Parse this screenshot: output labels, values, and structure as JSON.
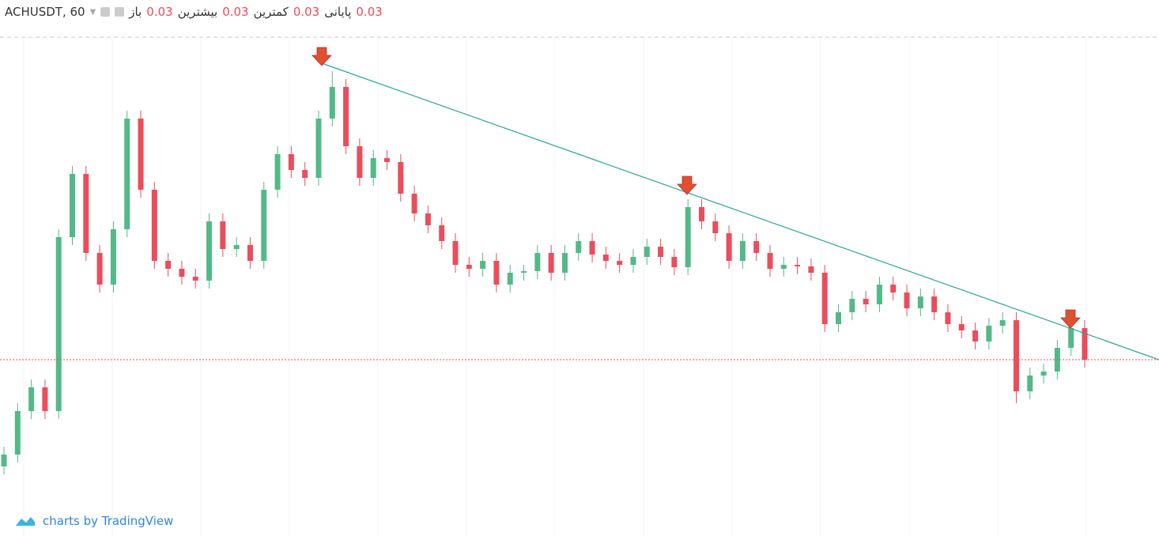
{
  "header": {
    "symbol": "ACHUSDT, 60",
    "open_label": "باز",
    "open": 0.03,
    "high_label": "بیشترین",
    "high": 0.03,
    "low_label": "کمترین",
    "low": 0.03,
    "close_label": "پایانی",
    "close": 0.03
  },
  "footer": "charts by TradingView",
  "chart_data": {
    "type": "candlestick",
    "up_color": "#53b987",
    "down_color": "#eb4d5c",
    "ylim": [
      0.02777,
      0.03407
    ],
    "ohlc": [
      [
        0.02865,
        0.0289,
        0.02855,
        0.0288
      ],
      [
        0.0288,
        0.02945,
        0.0287,
        0.02935
      ],
      [
        0.02935,
        0.02975,
        0.02925,
        0.02965
      ],
      [
        0.02965,
        0.02975,
        0.02925,
        0.02935
      ],
      [
        0.02935,
        0.03165,
        0.02925,
        0.03155
      ],
      [
        0.03155,
        0.03245,
        0.03145,
        0.03235
      ],
      [
        0.03235,
        0.03245,
        0.03125,
        0.03135
      ],
      [
        0.03135,
        0.03145,
        0.03085,
        0.03095
      ],
      [
        0.03095,
        0.03175,
        0.03085,
        0.03165
      ],
      [
        0.03165,
        0.03315,
        0.03155,
        0.03305
      ],
      [
        0.03305,
        0.03315,
        0.03205,
        0.03215
      ],
      [
        0.03215,
        0.03225,
        0.03115,
        0.03125
      ],
      [
        0.03125,
        0.03135,
        0.03105,
        0.03115
      ],
      [
        0.03115,
        0.03125,
        0.03095,
        0.03105
      ],
      [
        0.03105,
        0.03115,
        0.0309,
        0.031
      ],
      [
        0.031,
        0.03185,
        0.0309,
        0.03175
      ],
      [
        0.03175,
        0.03185,
        0.0313,
        0.0314
      ],
      [
        0.0314,
        0.03155,
        0.0313,
        0.03145
      ],
      [
        0.03145,
        0.03155,
        0.03115,
        0.03125
      ],
      [
        0.03125,
        0.03225,
        0.03115,
        0.03215
      ],
      [
        0.03215,
        0.0327,
        0.03205,
        0.0326
      ],
      [
        0.0326,
        0.0327,
        0.0323,
        0.0324
      ],
      [
        0.0324,
        0.0325,
        0.0322,
        0.0323
      ],
      [
        0.0323,
        0.03315,
        0.0322,
        0.03305
      ],
      [
        0.03305,
        0.03365,
        0.03295,
        0.03345
      ],
      [
        0.03345,
        0.03355,
        0.0326,
        0.0327
      ],
      [
        0.0327,
        0.0328,
        0.0322,
        0.0323
      ],
      [
        0.0323,
        0.03265,
        0.0322,
        0.03255
      ],
      [
        0.03255,
        0.03265,
        0.0324,
        0.0325
      ],
      [
        0.0325,
        0.0326,
        0.032,
        0.0321
      ],
      [
        0.0321,
        0.0322,
        0.03175,
        0.03185
      ],
      [
        0.03185,
        0.03195,
        0.0316,
        0.0317
      ],
      [
        0.0317,
        0.0318,
        0.0314,
        0.0315
      ],
      [
        0.0315,
        0.0316,
        0.0311,
        0.0312
      ],
      [
        0.0312,
        0.0313,
        0.03105,
        0.03115
      ],
      [
        0.03115,
        0.03135,
        0.03105,
        0.03125
      ],
      [
        0.03125,
        0.03135,
        0.03085,
        0.03095
      ],
      [
        0.03095,
        0.0312,
        0.03085,
        0.0311
      ],
      [
        0.0311,
        0.0312,
        0.031,
        0.03112
      ],
      [
        0.03112,
        0.03145,
        0.03102,
        0.03135
      ],
      [
        0.03135,
        0.03145,
        0.031,
        0.0311
      ],
      [
        0.0311,
        0.03145,
        0.031,
        0.03135
      ],
      [
        0.03135,
        0.0316,
        0.03125,
        0.0315
      ],
      [
        0.0315,
        0.0316,
        0.03123,
        0.03133
      ],
      [
        0.03133,
        0.03143,
        0.03115,
        0.03125
      ],
      [
        0.03125,
        0.03135,
        0.0311,
        0.0312
      ],
      [
        0.0312,
        0.0314,
        0.0311,
        0.0313
      ],
      [
        0.0313,
        0.03153,
        0.0312,
        0.03143
      ],
      [
        0.03143,
        0.03153,
        0.0312,
        0.0313
      ],
      [
        0.0313,
        0.0314,
        0.03107,
        0.03117
      ],
      [
        0.03117,
        0.03203,
        0.03107,
        0.03193
      ],
      [
        0.03193,
        0.03203,
        0.03165,
        0.03175
      ],
      [
        0.03175,
        0.03185,
        0.0315,
        0.0316
      ],
      [
        0.0316,
        0.0317,
        0.03115,
        0.03125
      ],
      [
        0.03125,
        0.0316,
        0.03115,
        0.0315
      ],
      [
        0.0315,
        0.0316,
        0.03125,
        0.03135
      ],
      [
        0.03135,
        0.03145,
        0.03105,
        0.03115
      ],
      [
        0.03115,
        0.0313,
        0.03105,
        0.0312
      ],
      [
        0.0312,
        0.0313,
        0.03108,
        0.03118
      ],
      [
        0.03118,
        0.03128,
        0.031,
        0.0311
      ],
      [
        0.0311,
        0.0312,
        0.03035,
        0.03045
      ],
      [
        0.03045,
        0.0307,
        0.03035,
        0.0306
      ],
      [
        0.0306,
        0.03087,
        0.0305,
        0.03077
      ],
      [
        0.03077,
        0.03087,
        0.0306,
        0.0307
      ],
      [
        0.0307,
        0.03105,
        0.0306,
        0.03095
      ],
      [
        0.03095,
        0.03105,
        0.03075,
        0.03085
      ],
      [
        0.03085,
        0.03095,
        0.03055,
        0.03065
      ],
      [
        0.03065,
        0.0309,
        0.03055,
        0.0308
      ],
      [
        0.0308,
        0.0309,
        0.0305,
        0.0306
      ],
      [
        0.0306,
        0.0307,
        0.03035,
        0.03045
      ],
      [
        0.03045,
        0.03055,
        0.03027,
        0.03037
      ],
      [
        0.03037,
        0.03047,
        0.03013,
        0.03023
      ],
      [
        0.03023,
        0.03053,
        0.03013,
        0.03043
      ],
      [
        0.03043,
        0.0306,
        0.03033,
        0.0305
      ],
      [
        0.0305,
        0.0306,
        0.02945,
        0.0296
      ],
      [
        0.0296,
        0.0299,
        0.0295,
        0.0298
      ],
      [
        0.0298,
        0.02995,
        0.0297,
        0.02985
      ],
      [
        0.02985,
        0.03025,
        0.02975,
        0.03015
      ],
      [
        0.03015,
        0.0305,
        0.03005,
        0.0304
      ],
      [
        0.0304,
        0.0305,
        0.0299,
        0.03
      ]
    ]
  }
}
